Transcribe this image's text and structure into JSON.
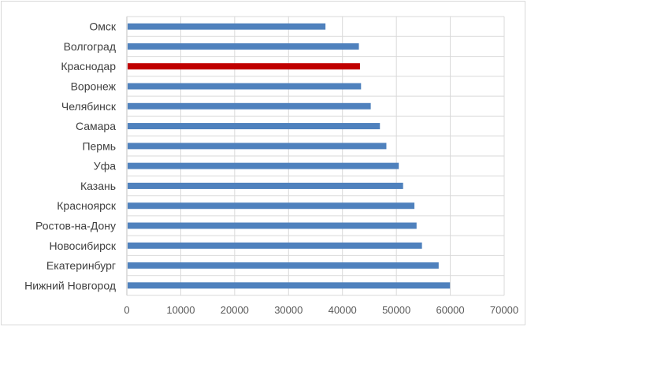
{
  "chart_data": {
    "type": "bar",
    "orientation": "horizontal",
    "title": "",
    "xlabel": "",
    "ylabel": "",
    "categories": [
      "Омск",
      "Волгоград",
      "Краснодар",
      "Воронеж",
      "Челябинск",
      "Самара",
      "Пермь",
      "Уфа",
      "Казань",
      "Красноярск",
      "Ростов-на-Дону",
      "Новосибирск",
      "Екатеринбург",
      "Нижний Новгород"
    ],
    "values": [
      36700,
      42900,
      43100,
      43300,
      45100,
      46800,
      48000,
      50300,
      51100,
      53200,
      53600,
      54600,
      57700,
      59800
    ],
    "xlim": [
      0,
      70000
    ],
    "x_ticks": [
      "0",
      "10000",
      "20000",
      "30000",
      "40000",
      "50000",
      "60000",
      "70000"
    ],
    "grid": "vertical",
    "legend": "none",
    "highlight_category": "Краснодар",
    "colors": {
      "bar": "#4f81bd",
      "highlight": "#c00000",
      "grid": "#d9d9d9",
      "axis": "#bfbfbf"
    }
  }
}
